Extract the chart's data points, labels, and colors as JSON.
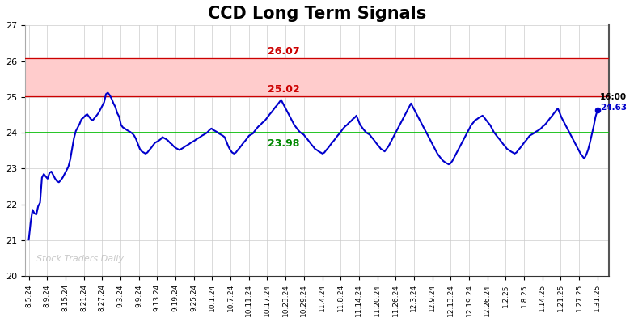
{
  "title": "CCD Long Term Signals",
  "watermark": "Stock Traders Daily",
  "line_color": "#0000cc",
  "line_width": 1.5,
  "hline_green": 24.0,
  "hline_red1": 25.02,
  "hline_red2": 26.07,
  "hline_green_color": "#00bb00",
  "hline_red_color": "#cc0000",
  "hband_color": "#ffcccc",
  "label_26_07": "26.07",
  "label_25_02": "25.02",
  "label_23_98": "23.98",
  "label_color_red": "#cc0000",
  "label_color_green": "#008800",
  "last_label": "16:00",
  "last_value": "24.63",
  "last_value_color": "#0000cc",
  "last_label_color": "#000000",
  "ylim": [
    20,
    27
  ],
  "yticks": [
    20,
    21,
    22,
    23,
    24,
    25,
    26,
    27
  ],
  "background_color": "#ffffff",
  "grid_color": "#cccccc",
  "title_fontsize": 15,
  "x_labels": [
    "8.5.24",
    "8.9.24",
    "8.15.24",
    "8.21.24",
    "8.27.24",
    "9.3.24",
    "9.9.24",
    "9.13.24",
    "9.19.24",
    "9.25.24",
    "10.1.24",
    "10.7.24",
    "10.11.24",
    "10.17.24",
    "10.23.24",
    "10.29.24",
    "11.4.24",
    "11.8.24",
    "11.14.24",
    "11.20.24",
    "11.26.24",
    "12.3.24",
    "12.9.24",
    "12.13.24",
    "12.19.24",
    "12.26.24",
    "1.2.25",
    "1.8.25",
    "1.14.25",
    "1.21.25",
    "1.27.25",
    "1.31.25"
  ],
  "prices": [
    21.02,
    21.5,
    21.85,
    21.75,
    21.72,
    21.95,
    22.05,
    22.75,
    22.85,
    22.78,
    22.72,
    22.88,
    22.92,
    22.82,
    22.72,
    22.65,
    22.62,
    22.68,
    22.75,
    22.85,
    22.95,
    23.05,
    23.25,
    23.55,
    23.85,
    24.05,
    24.15,
    24.25,
    24.38,
    24.42,
    24.48,
    24.52,
    24.45,
    24.38,
    24.35,
    24.42,
    24.48,
    24.55,
    24.65,
    24.75,
    24.85,
    25.08,
    25.12,
    25.05,
    24.95,
    24.82,
    24.72,
    24.55,
    24.45,
    24.22,
    24.15,
    24.12,
    24.08,
    24.05,
    24.02,
    23.98,
    23.92,
    23.82,
    23.68,
    23.55,
    23.48,
    23.45,
    23.42,
    23.45,
    23.52,
    23.58,
    23.65,
    23.72,
    23.75,
    23.78,
    23.82,
    23.88,
    23.85,
    23.82,
    23.78,
    23.72,
    23.68,
    23.62,
    23.58,
    23.55,
    23.52,
    23.55,
    23.58,
    23.62,
    23.65,
    23.68,
    23.72,
    23.75,
    23.78,
    23.82,
    23.85,
    23.88,
    23.92,
    23.95,
    23.98,
    24.02,
    24.08,
    24.12,
    24.08,
    24.05,
    24.02,
    23.98,
    23.95,
    23.92,
    23.88,
    23.75,
    23.62,
    23.52,
    23.45,
    23.42,
    23.45,
    23.52,
    23.58,
    23.65,
    23.72,
    23.78,
    23.85,
    23.92,
    23.95,
    23.98,
    24.05,
    24.12,
    24.18,
    24.22,
    24.28,
    24.32,
    24.38,
    24.45,
    24.52,
    24.58,
    24.65,
    24.72,
    24.78,
    24.85,
    24.92,
    24.82,
    24.72,
    24.62,
    24.52,
    24.42,
    24.32,
    24.22,
    24.15,
    24.08,
    24.02,
    23.98,
    23.95,
    23.88,
    23.82,
    23.75,
    23.68,
    23.62,
    23.55,
    23.52,
    23.48,
    23.45,
    23.42,
    23.45,
    23.52,
    23.58,
    23.65,
    23.72,
    23.78,
    23.85,
    23.92,
    23.98,
    24.05,
    24.12,
    24.18,
    24.22,
    24.28,
    24.32,
    24.38,
    24.42,
    24.48,
    24.35,
    24.22,
    24.15,
    24.08,
    24.02,
    23.98,
    23.95,
    23.88,
    23.82,
    23.75,
    23.68,
    23.62,
    23.55,
    23.52,
    23.48,
    23.55,
    23.62,
    23.72,
    23.82,
    23.92,
    24.02,
    24.12,
    24.22,
    24.32,
    24.42,
    24.52,
    24.62,
    24.72,
    24.82,
    24.72,
    24.62,
    24.52,
    24.42,
    24.32,
    24.22,
    24.12,
    24.02,
    23.92,
    23.82,
    23.72,
    23.62,
    23.52,
    23.42,
    23.35,
    23.28,
    23.22,
    23.18,
    23.15,
    23.12,
    23.15,
    23.22,
    23.32,
    23.42,
    23.52,
    23.62,
    23.72,
    23.82,
    23.92,
    24.02,
    24.12,
    24.22,
    24.28,
    24.35,
    24.38,
    24.42,
    24.45,
    24.48,
    24.42,
    24.35,
    24.28,
    24.22,
    24.12,
    24.02,
    23.95,
    23.88,
    23.82,
    23.75,
    23.68,
    23.62,
    23.55,
    23.52,
    23.48,
    23.45,
    23.42,
    23.45,
    23.52,
    23.58,
    23.65,
    23.72,
    23.78,
    23.85,
    23.92,
    23.95,
    23.98,
    24.02,
    24.05,
    24.08,
    24.12,
    24.18,
    24.22,
    24.28,
    24.35,
    24.42,
    24.48,
    24.55,
    24.62,
    24.68,
    24.55,
    24.42,
    24.32,
    24.22,
    24.12,
    24.02,
    23.92,
    23.82,
    23.72,
    23.62,
    23.52,
    23.42,
    23.35,
    23.28,
    23.38,
    23.52,
    23.72,
    23.95,
    24.18,
    24.45,
    24.63
  ]
}
